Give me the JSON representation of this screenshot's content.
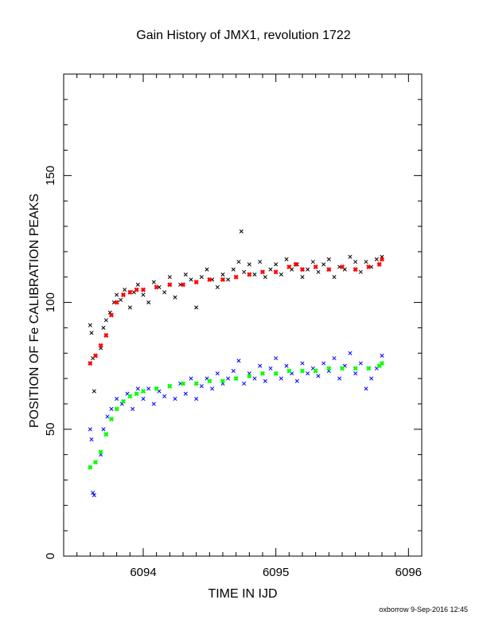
{
  "chart_data": {
    "type": "scatter",
    "title": "Gain History of JMX1, revolution 1722",
    "xlabel": "TIME IN IJD",
    "ylabel": "POSITION OF Fe CALIBRATION PEAKS",
    "xlim": [
      6093.4,
      6096.1
    ],
    "ylim": [
      0,
      190
    ],
    "xticks": [
      6094,
      6095,
      6096
    ],
    "yticks": [
      0,
      50,
      100,
      150
    ],
    "grid": false,
    "series": [
      {
        "marker": "x",
        "color": "#000000",
        "x": [
          6093.6,
          6093.61,
          6093.62,
          6093.63,
          6093.68,
          6093.7,
          6093.72,
          6093.75,
          6093.78,
          6093.8,
          6093.83,
          6093.86,
          6093.9,
          6093.93,
          6093.96,
          6094.0,
          6094.04,
          6094.08,
          6094.12,
          6094.16,
          6094.2,
          6094.24,
          6094.28,
          6094.32,
          6094.36,
          6094.4,
          6094.44,
          6094.48,
          6094.52,
          6094.56,
          6094.6,
          6094.64,
          6094.68,
          6094.72,
          6094.74,
          6094.76,
          6094.8,
          6094.84,
          6094.88,
          6094.92,
          6094.96,
          6095.0,
          6095.04,
          6095.08,
          6095.12,
          6095.16,
          6095.2,
          6095.24,
          6095.28,
          6095.32,
          6095.36,
          6095.4,
          6095.44,
          6095.48,
          6095.52,
          6095.56,
          6095.6,
          6095.64,
          6095.68,
          6095.72,
          6095.76,
          6095.8
        ],
        "y": [
          91,
          88,
          78,
          65,
          82,
          90,
          93,
          96,
          100,
          103,
          101,
          105,
          98,
          104,
          107,
          103,
          100,
          108,
          106,
          104,
          110,
          102,
          107,
          111,
          109,
          98,
          110,
          113,
          109,
          106,
          111,
          109,
          113,
          116,
          128,
          112,
          115,
          111,
          116,
          110,
          113,
          115,
          111,
          117,
          113,
          115,
          110,
          113,
          116,
          112,
          115,
          117,
          110,
          114,
          113,
          118,
          116,
          112,
          116,
          114,
          117,
          118
        ],
        "name": ""
      },
      {
        "marker": "x",
        "color": "#ff0000",
        "x": [
          6093.6,
          6093.64,
          6093.68,
          6093.72,
          6093.76,
          6093.8,
          6093.85,
          6093.9,
          6093.95,
          6094.0,
          6094.1,
          6094.2,
          6094.3,
          6094.4,
          6094.5,
          6094.6,
          6094.7,
          6094.8,
          6094.9,
          6095.0,
          6095.1,
          6095.15,
          6095.2,
          6095.3,
          6095.4,
          6095.5,
          6095.6,
          6095.7,
          6095.78,
          6095.8
        ],
        "y": [
          76,
          79,
          83,
          87,
          95,
          100,
          103,
          104,
          105,
          105,
          106,
          107,
          107,
          108,
          109,
          109,
          110,
          111,
          112,
          112,
          114,
          115,
          113,
          114,
          113,
          114,
          113,
          114,
          115,
          117
        ],
        "name": ""
      },
      {
        "marker": "x",
        "color": "#0000ff",
        "x": [
          6093.6,
          6093.61,
          6093.62,
          6093.63,
          6093.68,
          6093.7,
          6093.73,
          6093.76,
          6093.8,
          6093.84,
          6093.88,
          6093.92,
          6093.96,
          6094.0,
          6094.04,
          6094.08,
          6094.12,
          6094.16,
          6094.2,
          6094.24,
          6094.28,
          6094.32,
          6094.36,
          6094.4,
          6094.44,
          6094.48,
          6094.52,
          6094.56,
          6094.6,
          6094.64,
          6094.68,
          6094.72,
          6094.76,
          6094.8,
          6094.84,
          6094.88,
          6094.92,
          6094.96,
          6095.0,
          6095.04,
          6095.08,
          6095.12,
          6095.16,
          6095.2,
          6095.24,
          6095.28,
          6095.32,
          6095.36,
          6095.4,
          6095.44,
          6095.48,
          6095.52,
          6095.56,
          6095.6,
          6095.64,
          6095.68,
          6095.72,
          6095.76,
          6095.8
        ],
        "y": [
          50,
          46,
          25,
          24,
          40,
          50,
          55,
          58,
          62,
          60,
          64,
          58,
          66,
          62,
          66,
          60,
          65,
          63,
          67,
          62,
          68,
          64,
          70,
          62,
          67,
          70,
          66,
          72,
          68,
          70,
          73,
          77,
          68,
          72,
          70,
          75,
          69,
          74,
          78,
          70,
          75,
          72,
          69,
          76,
          72,
          74,
          71,
          76,
          73,
          78,
          70,
          75,
          80,
          72,
          76,
          66,
          70,
          74,
          79
        ],
        "name": ""
      },
      {
        "marker": "x",
        "color": "#00ff00",
        "x": [
          6093.6,
          6093.64,
          6093.68,
          6093.72,
          6093.76,
          6093.8,
          6093.85,
          6093.9,
          6093.95,
          6094.0,
          6094.1,
          6094.2,
          6094.3,
          6094.4,
          6094.5,
          6094.6,
          6094.7,
          6094.8,
          6094.9,
          6095.0,
          6095.1,
          6095.2,
          6095.3,
          6095.4,
          6095.5,
          6095.6,
          6095.7,
          6095.78,
          6095.8
        ],
        "y": [
          35,
          37,
          41,
          48,
          54,
          58,
          61,
          63,
          64,
          65,
          66,
          67,
          68,
          68,
          69,
          69,
          70,
          71,
          72,
          72,
          73,
          73,
          73,
          74,
          74,
          74,
          74,
          75,
          76
        ],
        "name": ""
      }
    ]
  },
  "footer": "oxborrow  9-Sep-2016 12:45"
}
